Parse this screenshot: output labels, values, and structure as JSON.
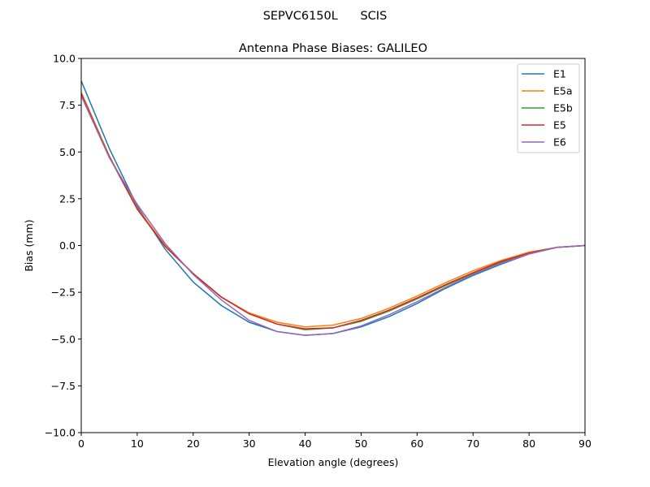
{
  "chart_data": {
    "type": "line",
    "suptitle": "SEPVC6150L      SCIS",
    "title": "Antenna Phase Biases: GALILEO",
    "xlabel": "Elevation angle (degrees)",
    "ylabel": "Bias (mm)",
    "xlim": [
      0,
      90
    ],
    "ylim": [
      -10,
      10
    ],
    "xticks": [
      0,
      10,
      20,
      30,
      40,
      50,
      60,
      70,
      80,
      90
    ],
    "yticks": [
      -10.0,
      -7.5,
      -5.0,
      -2.5,
      0.0,
      2.5,
      5.0,
      7.5,
      10.0
    ],
    "ytick_labels": [
      "−10.0",
      "−7.5",
      "−5.0",
      "−2.5",
      "0.0",
      "2.5",
      "5.0",
      "7.5",
      "10.0"
    ],
    "grid": false,
    "legend_placement": "top-right",
    "x": [
      0,
      5,
      10,
      15,
      20,
      25,
      30,
      35,
      40,
      45,
      50,
      55,
      60,
      65,
      70,
      75,
      80,
      85,
      90
    ],
    "series": [
      {
        "name": "E1",
        "color": "#1f77b4",
        "values": [
          8.8,
          5.2,
          2.1,
          -0.2,
          -1.95,
          -3.2,
          -4.1,
          -4.6,
          -4.8,
          -4.7,
          -4.35,
          -3.8,
          -3.1,
          -2.3,
          -1.6,
          -1.0,
          -0.45,
          -0.1,
          0.0
        ]
      },
      {
        "name": "E5a",
        "color": "#ff7f0e",
        "values": [
          8.2,
          4.8,
          2.0,
          0.0,
          -1.5,
          -2.75,
          -3.6,
          -4.1,
          -4.35,
          -4.25,
          -3.9,
          -3.35,
          -2.7,
          -2.0,
          -1.35,
          -0.8,
          -0.35,
          -0.1,
          0.0
        ]
      },
      {
        "name": "E5b",
        "color": "#2ca02c",
        "values": [
          8.1,
          4.75,
          1.95,
          -0.05,
          -1.5,
          -2.75,
          -3.65,
          -4.2,
          -4.5,
          -4.4,
          -4.05,
          -3.5,
          -2.85,
          -2.15,
          -1.5,
          -0.9,
          -0.4,
          -0.1,
          0.0
        ]
      },
      {
        "name": "E5",
        "color": "#d62728",
        "values": [
          8.1,
          4.75,
          1.95,
          -0.05,
          -1.5,
          -2.75,
          -3.65,
          -4.2,
          -4.45,
          -4.4,
          -4.0,
          -3.45,
          -2.8,
          -2.1,
          -1.45,
          -0.85,
          -0.4,
          -0.1,
          0.0
        ]
      },
      {
        "name": "E6",
        "color": "#9467bd",
        "values": [
          8.0,
          4.7,
          2.2,
          0.1,
          -1.55,
          -2.9,
          -4.0,
          -4.6,
          -4.8,
          -4.7,
          -4.3,
          -3.7,
          -3.0,
          -2.25,
          -1.55,
          -0.95,
          -0.45,
          -0.1,
          0.0
        ]
      }
    ]
  }
}
